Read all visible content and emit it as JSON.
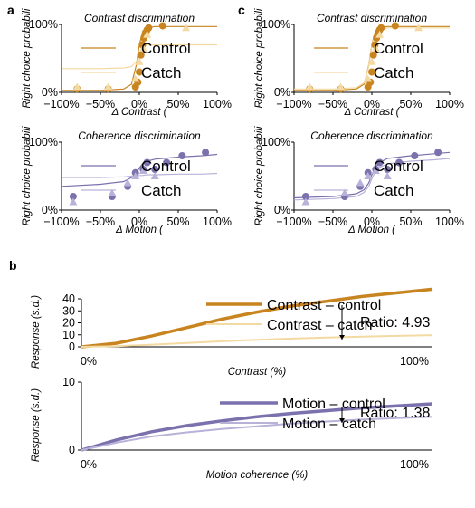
{
  "colors": {
    "contrast_dark": "#c8841f",
    "contrast_light": "#f3d9a2",
    "motion_dark": "#7a71ad",
    "motion_light": "#b8b2d8"
  },
  "panel_letters": [
    "a",
    "b",
    "c"
  ],
  "chart_data": [
    {
      "id": "a_contrast",
      "type": "scatter",
      "title": "Contrast discrimination",
      "xlabel": "Δ Contrast (",
      "ylabel": "Right choice probabili",
      "xlim": [
        -100,
        100
      ],
      "ylim": [
        0,
        100
      ],
      "x_ticks": [
        "−100%",
        "−50%",
        "0%",
        "50%",
        "100%"
      ],
      "y_ticks": [
        "0%",
        "100%"
      ],
      "legend": [
        "Control",
        "Catch"
      ],
      "series": [
        {
          "name": "Control",
          "color_key": "contrast_dark",
          "x": [
            -80,
            -40,
            -5,
            -2,
            0,
            2,
            4,
            6,
            8,
            10,
            12,
            30
          ],
          "y": [
            5,
            5,
            8,
            15,
            30,
            55,
            70,
            80,
            88,
            92,
            95,
            98
          ],
          "curve_y": [
            3,
            3,
            5,
            12,
            40,
            70,
            88,
            95,
            97,
            97,
            97,
            97
          ]
        },
        {
          "name": "Catch",
          "color_key": "contrast_light",
          "x": [
            -80,
            -40,
            -5,
            0,
            5,
            10,
            60
          ],
          "y": [
            8,
            8,
            20,
            45,
            65,
            85,
            95
          ],
          "curve_y": [
            35,
            35,
            36,
            38,
            45,
            55,
            68,
            70,
            70,
            70,
            70,
            70
          ]
        }
      ]
    },
    {
      "id": "a_motion",
      "type": "scatter",
      "title": "Coherence discrimination",
      "xlabel": "Δ Motion (",
      "ylabel": "Right choice probabili",
      "xlim": [
        -100,
        100
      ],
      "ylim": [
        0,
        100
      ],
      "x_ticks": [
        "−100%",
        "−50%",
        "0%",
        "50%",
        "100%"
      ],
      "y_ticks": [
        "0%",
        "100%"
      ],
      "legend": [
        "Control",
        "Catch"
      ],
      "series": [
        {
          "name": "Control",
          "color_key": "motion_dark",
          "x": [
            -85,
            -35,
            -15,
            -5,
            5,
            10,
            20,
            35,
            55,
            85
          ],
          "y": [
            20,
            20,
            35,
            55,
            60,
            70,
            60,
            70,
            80,
            85
          ],
          "curve_y": [
            35,
            38,
            42,
            48,
            55,
            62,
            68,
            72,
            75,
            78,
            80,
            82
          ]
        },
        {
          "name": "Catch",
          "color_key": "motion_light",
          "x": [
            -85,
            -35,
            -15,
            -5,
            5,
            20
          ],
          "y": [
            12,
            25,
            40,
            50,
            58,
            50
          ],
          "curve_y": [
            48,
            48,
            49,
            50,
            50,
            51,
            51,
            52,
            52,
            53,
            53,
            54
          ]
        }
      ]
    },
    {
      "id": "c_contrast",
      "type": "scatter",
      "title": "Contrast discrimination",
      "xlabel": "Δ Contrast (",
      "ylabel": "Right choice probabili",
      "xlim": [
        -100,
        100
      ],
      "ylim": [
        0,
        100
      ],
      "x_ticks": [
        "−100%",
        "−50%",
        "0%",
        "50%",
        "100%"
      ],
      "y_ticks": [
        "0%",
        "100%"
      ],
      "legend": [
        "Control",
        "Catch"
      ],
      "series": [
        {
          "name": "Control",
          "color_key": "contrast_dark",
          "x": [
            -80,
            -40,
            -5,
            -2,
            0,
            2,
            4,
            6,
            8,
            10,
            12,
            30
          ],
          "y": [
            5,
            5,
            8,
            15,
            30,
            55,
            70,
            80,
            88,
            92,
            95,
            98
          ],
          "curve_y": [
            3,
            3,
            5,
            12,
            40,
            70,
            88,
            95,
            97,
            97,
            97,
            97
          ]
        },
        {
          "name": "Catch",
          "color_key": "contrast_light",
          "x": [
            -80,
            -40,
            -5,
            0,
            5,
            10,
            60
          ],
          "y": [
            8,
            8,
            20,
            45,
            65,
            85,
            95
          ],
          "curve_y": [
            5,
            5,
            7,
            14,
            38,
            68,
            86,
            93,
            95,
            95,
            95,
            95
          ]
        }
      ]
    },
    {
      "id": "c_motion",
      "type": "scatter",
      "title": "Coherence discrimination",
      "xlabel": "Δ Motion (",
      "ylabel": "Right choice probabili",
      "xlim": [
        -100,
        100
      ],
      "ylim": [
        0,
        100
      ],
      "x_ticks": [
        "−100%",
        "−50%",
        "0%",
        "50%",
        "100%"
      ],
      "y_ticks": [
        "0%",
        "100%"
      ],
      "legend": [
        "Control",
        "Catch"
      ],
      "series": [
        {
          "name": "Control",
          "color_key": "motion_dark",
          "x": [
            -85,
            -35,
            -15,
            -5,
            5,
            10,
            20,
            35,
            55,
            85
          ],
          "y": [
            20,
            20,
            35,
            55,
            60,
            70,
            60,
            70,
            80,
            85
          ],
          "curve_y": [
            18,
            20,
            24,
            30,
            40,
            52,
            62,
            70,
            76,
            80,
            83,
            85
          ]
        },
        {
          "name": "Catch",
          "color_key": "motion_light",
          "x": [
            -85,
            -35,
            -15,
            -5,
            5,
            20
          ],
          "y": [
            12,
            25,
            40,
            50,
            58,
            50
          ],
          "curve_y": [
            15,
            17,
            20,
            26,
            35,
            46,
            56,
            63,
            68,
            72,
            74,
            76
          ]
        }
      ]
    },
    {
      "id": "b_contrast",
      "type": "line",
      "xlabel": "Contrast (%)",
      "ylabel": "Response (s.d.)",
      "xlim": [
        0,
        100
      ],
      "ylim": [
        0,
        40
      ],
      "x_ticks": [
        "0%",
        "100%"
      ],
      "y_ticks": [
        "0",
        "10",
        "20",
        "30",
        "40"
      ],
      "ratio_label": "Ratio: 4.93",
      "series": [
        {
          "name": "Contrast – control",
          "color_key": "contrast_dark",
          "x": [
            0,
            10,
            20,
            30,
            40,
            50,
            60,
            70,
            80,
            90,
            100
          ],
          "y": [
            0,
            3,
            9,
            16,
            23,
            29,
            34,
            38,
            42,
            45,
            48
          ]
        },
        {
          "name": "Contrast – catch",
          "color_key": "contrast_light",
          "x": [
            0,
            10,
            20,
            30,
            40,
            50,
            60,
            70,
            80,
            90,
            100
          ],
          "y": [
            0,
            0.6,
            1.8,
            3.2,
            4.6,
            5.9,
            6.9,
            7.7,
            8.5,
            9.1,
            9.7
          ]
        }
      ]
    },
    {
      "id": "b_motion",
      "type": "line",
      "xlabel": "Motion coherence (%)",
      "ylabel": "Response (s.d.)",
      "xlim": [
        0,
        100
      ],
      "ylim": [
        0,
        10
      ],
      "x_ticks": [
        "0%",
        "100%"
      ],
      "y_ticks": [
        "0",
        "10"
      ],
      "ratio_label": "Ratio: 1.38",
      "series": [
        {
          "name": "Motion – control",
          "color_key": "motion_dark",
          "x": [
            0,
            10,
            20,
            30,
            40,
            50,
            60,
            70,
            80,
            90,
            100
          ],
          "y": [
            0,
            1.5,
            2.7,
            3.6,
            4.3,
            4.9,
            5.4,
            5.8,
            6.2,
            6.5,
            6.8
          ]
        },
        {
          "name": "Motion – catch",
          "color_key": "motion_light",
          "x": [
            0,
            10,
            20,
            30,
            40,
            50,
            60,
            70,
            80,
            90,
            100
          ],
          "y": [
            0,
            1.1,
            2.0,
            2.6,
            3.1,
            3.5,
            3.9,
            4.2,
            4.5,
            4.7,
            4.9
          ]
        }
      ]
    }
  ]
}
